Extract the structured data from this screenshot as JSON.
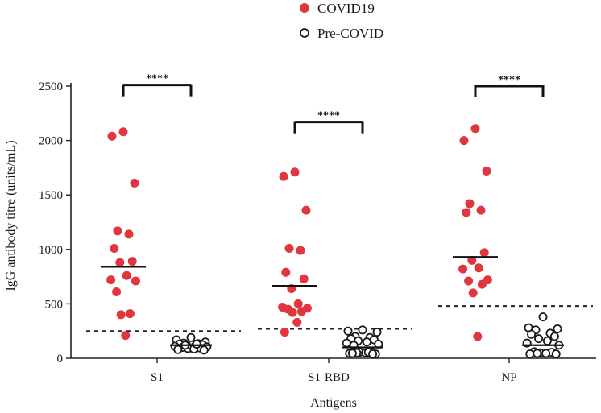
{
  "chart_data": {
    "type": "scatter",
    "title": "",
    "xlabel": "Antigens",
    "ylabel": "IgG antibody titre (units/mL)",
    "categories": [
      "S1",
      "S1-RBD",
      "NP"
    ],
    "ylim": [
      0,
      2500
    ],
    "yticks": [
      0,
      500,
      1000,
      1500,
      2000,
      2500
    ],
    "legend": {
      "position": "top-center",
      "entries": [
        {
          "name": "COVID19",
          "marker": "filled-circle",
          "color": "#e0363e"
        },
        {
          "name": "Pre-COVID",
          "marker": "open-circle",
          "color": "#1a1a1a"
        }
      ]
    },
    "series": [
      {
        "name": "COVID19",
        "groups": [
          {
            "category": "S1",
            "values": [
              2080,
              2040,
              1610,
              1170,
              1140,
              1010,
              890,
              880,
              760,
              720,
              710,
              610,
              410,
              400,
              210
            ],
            "mean": 840
          },
          {
            "category": "S1-RBD",
            "values": [
              1710,
              1670,
              1360,
              1010,
              990,
              790,
              730,
              640,
              500,
              470,
              460,
              450,
              430,
              420,
              330,
              240
            ],
            "mean": 665
          },
          {
            "category": "NP",
            "values": [
              2110,
              2000,
              1720,
              1420,
              1360,
              1340,
              970,
              900,
              830,
              820,
              720,
              710,
              680,
              600,
              200
            ],
            "mean": 930
          }
        ]
      },
      {
        "name": "Pre-COVID",
        "groups": [
          {
            "category": "S1",
            "values": [
              190,
              170,
              150,
              140,
              135,
              130,
              125,
              120,
              115,
              110,
              105,
              100,
              95,
              90,
              85,
              80,
              75,
              120,
              130
            ],
            "mean": 120
          },
          {
            "category": "S1-RBD",
            "values": [
              260,
              250,
              240,
              200,
              190,
              180,
              170,
              160,
              150,
              140,
              130,
              120,
              60,
              55,
              50,
              45,
              40,
              50,
              55,
              45,
              40
            ],
            "mean": 100
          },
          {
            "category": "NP",
            "values": [
              380,
              280,
              270,
              260,
              230,
              220,
              200,
              180,
              160,
              140,
              120,
              60,
              55,
              50,
              45,
              40,
              40,
              45
            ],
            "mean": 120
          }
        ]
      }
    ],
    "cutoffs": [
      {
        "category": "S1",
        "value": 250
      },
      {
        "category": "S1-RBD",
        "value": 270
      },
      {
        "category": "NP",
        "value": 480
      }
    ],
    "significance": [
      {
        "category": "S1",
        "label": "****",
        "y": 2510
      },
      {
        "category": "S1-RBD",
        "label": "****",
        "y": 2170
      },
      {
        "category": "NP",
        "label": "****",
        "y": 2500
      }
    ]
  }
}
